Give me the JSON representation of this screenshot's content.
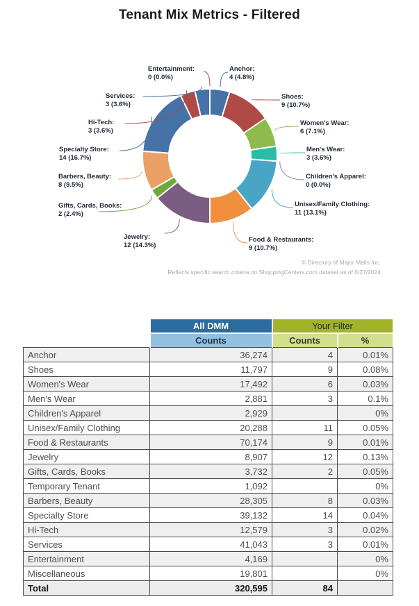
{
  "page": {
    "title": "Tenant Mix Metrics - Filtered"
  },
  "chart_data": {
    "type": "pie",
    "variant": "donut",
    "legend_position": "none",
    "label_format": "name: count (pct)",
    "total_count": 84,
    "slices": [
      {
        "name": "Anchor",
        "count": 4,
        "pct": "4.8%",
        "color": "#4572a7"
      },
      {
        "name": "Shoes",
        "count": 9,
        "pct": "10.7%",
        "color": "#b04a47"
      },
      {
        "name": "Women's Wear",
        "count": 6,
        "pct": "7.1%",
        "color": "#8eba4e"
      },
      {
        "name": "Men's Wear",
        "count": 3,
        "pct": "3.6%",
        "color": "#2abca4"
      },
      {
        "name": "Children's Apparel",
        "count": 0,
        "pct": "0.0%",
        "color": "#9b84bd"
      },
      {
        "name": "Unisex/Family Clothing",
        "count": 11,
        "pct": "13.1%",
        "color": "#4aa5c5"
      },
      {
        "name": "Food & Restaurants",
        "count": 9,
        "pct": "10.7%",
        "color": "#f0903e"
      },
      {
        "name": "Jewelry",
        "count": 12,
        "pct": "14.3%",
        "color": "#7b5d81"
      },
      {
        "name": "Gifts, Cards, Books",
        "count": 2,
        "pct": "2.4%",
        "color": "#6fa93a"
      },
      {
        "name": "Barbers, Beauty",
        "count": 8,
        "pct": "9.5%",
        "color": "#eba066"
      },
      {
        "name": "Specialty Store",
        "count": 14,
        "pct": "16.7%",
        "color": "#4572a7"
      },
      {
        "name": "Hi-Tech",
        "count": 3,
        "pct": "3.6%",
        "color": "#b04a47"
      },
      {
        "name": "Services",
        "count": 3,
        "pct": "3.6%",
        "color": "#4572a7"
      },
      {
        "name": "Entertainment",
        "count": 0,
        "pct": "0.0%",
        "color": "#b04a47"
      }
    ],
    "credit_line1": "© Directory of Major Malls Inc.",
    "credit_line2": "Reflects specific search criteria on ShoppingCenters.com dataset as of 6/27/2024"
  },
  "table": {
    "col_groups": [
      {
        "label": "All DMM"
      },
      {
        "label": "Your Filter"
      }
    ],
    "sub_headers": [
      "Counts",
      "Counts",
      "%"
    ],
    "rows": [
      {
        "category": "Anchor",
        "all_dmm": "36,274",
        "filter_count": "4",
        "filter_pct": "0.01%"
      },
      {
        "category": "Shoes",
        "all_dmm": "11,797",
        "filter_count": "9",
        "filter_pct": "0.08%"
      },
      {
        "category": "Women's Wear",
        "all_dmm": "17,492",
        "filter_count": "6",
        "filter_pct": "0.03%"
      },
      {
        "category": "Men's Wear",
        "all_dmm": "2,881",
        "filter_count": "3",
        "filter_pct": "0.1%"
      },
      {
        "category": "Children's Apparel",
        "all_dmm": "2,929",
        "filter_count": "",
        "filter_pct": "0%"
      },
      {
        "category": "Unisex/Family Clothing",
        "all_dmm": "20,288",
        "filter_count": "11",
        "filter_pct": "0.05%"
      },
      {
        "category": "Food & Restaurants",
        "all_dmm": "70,174",
        "filter_count": "9",
        "filter_pct": "0.01%"
      },
      {
        "category": "Jewelry",
        "all_dmm": "8,907",
        "filter_count": "12",
        "filter_pct": "0.13%"
      },
      {
        "category": "Gifts, Cards, Books",
        "all_dmm": "3,732",
        "filter_count": "2",
        "filter_pct": "0.05%"
      },
      {
        "category": "Temporary Tenant",
        "all_dmm": "1,092",
        "filter_count": "",
        "filter_pct": "0%"
      },
      {
        "category": "Barbers, Beauty",
        "all_dmm": "28,305",
        "filter_count": "8",
        "filter_pct": "0.03%"
      },
      {
        "category": "Specialty Store",
        "all_dmm": "39,132",
        "filter_count": "14",
        "filter_pct": "0.04%"
      },
      {
        "category": "Hi-Tech",
        "all_dmm": "12,579",
        "filter_count": "3",
        "filter_pct": "0.02%"
      },
      {
        "category": "Services",
        "all_dmm": "41,043",
        "filter_count": "3",
        "filter_pct": "0.01%"
      },
      {
        "category": "Entertainment",
        "all_dmm": "4,169",
        "filter_count": "",
        "filter_pct": "0%"
      },
      {
        "category": "Miscellaneous",
        "all_dmm": "19,801",
        "filter_count": "",
        "filter_pct": "0%"
      }
    ],
    "total": {
      "category": "Total",
      "all_dmm": "320,595",
      "filter_count": "84",
      "filter_pct": ""
    }
  },
  "colors": {
    "all_dmm_header_bg": "#2b6da0",
    "all_dmm_sub_bg": "#92c1e1",
    "filter_header_bg": "#a2b329",
    "filter_sub_bg": "#d3df8d",
    "row_stripe": "#efefef",
    "table_border": "#4a4a4a"
  }
}
